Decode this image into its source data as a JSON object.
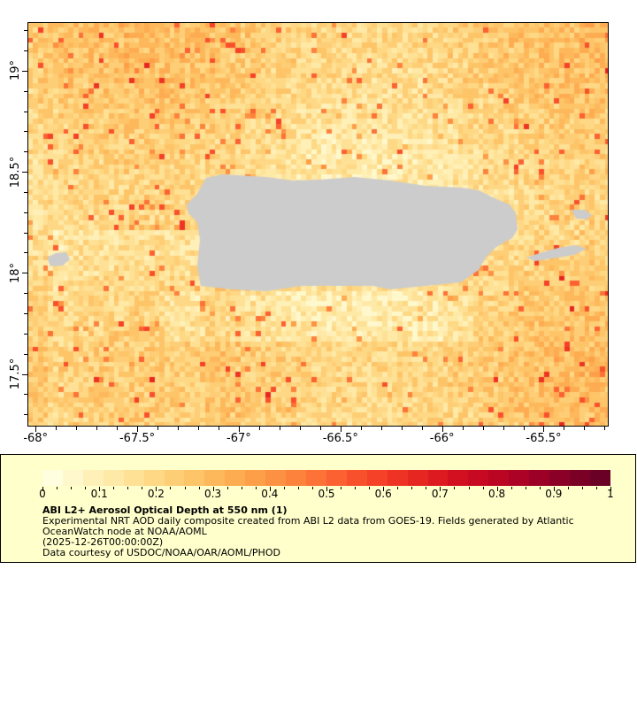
{
  "map": {
    "lat_labels": [
      {
        "value": 19,
        "label": "19°"
      },
      {
        "value": 18.5,
        "label": "18.5°"
      },
      {
        "value": 18,
        "label": "18°"
      },
      {
        "value": 17.5,
        "label": "17.5°"
      }
    ],
    "lon_labels": [
      {
        "value": -68,
        "label": "-68°"
      },
      {
        "value": -67.5,
        "label": "-67.5°"
      },
      {
        "value": -67,
        "label": "-67°"
      },
      {
        "value": -66.5,
        "label": "-66.5°"
      },
      {
        "value": -66,
        "label": "-66°"
      },
      {
        "value": -65.5,
        "label": "-65.5°"
      }
    ],
    "lon_range": [
      -68.04,
      -65.18
    ],
    "lat_range": [
      17.24,
      19.24
    ],
    "land_color": "#cccccc",
    "nodata_color": "#808080"
  },
  "legend": {
    "colorbar_min": 0,
    "colorbar_max": 1,
    "tick_labels": [
      "0",
      "0.1",
      "0.2",
      "0.3",
      "0.4",
      "0.5",
      "0.6",
      "0.7",
      "0.8",
      "0.9",
      "1"
    ],
    "colors": [
      "#ffffe0",
      "#fff8cc",
      "#fff0b8",
      "#ffe9a6",
      "#fee195",
      "#fed884",
      "#fece76",
      "#fec468",
      "#feb85c",
      "#feac52",
      "#fd9f49",
      "#fd9143",
      "#fd833d",
      "#fc7237",
      "#fc6131",
      "#f9502c",
      "#f44128",
      "#ee3324",
      "#e62621",
      "#dd1a1f",
      "#d3101f",
      "#c70921",
      "#ba0523",
      "#ac0225",
      "#9c0026",
      "#8b0026",
      "#7a0026",
      "#6b0026"
    ],
    "title": "ABI L2+ Aerosol Optical Depth at 550 nm (1)",
    "line1": "Experimental NRT AOD daily composite created from ABI L2 data from GOES-19. Fields generated by Atlantic",
    "line2": "OceanWatch node at NOAA/AOML",
    "line3": "(2025-12-26T00:00:00Z)",
    "line4": "Data courtesy of USDOC/NOAA/OAR/AOML/PHOD"
  }
}
